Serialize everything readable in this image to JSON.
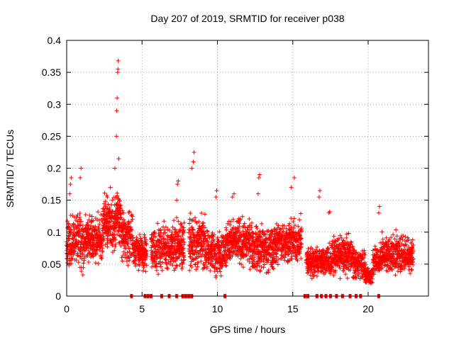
{
  "chart_data": {
    "type": "scatter",
    "title": "Day 207 of 2019, SRMTID for receiver p038",
    "xlabel": "GPS time / hours",
    "ylabel": "SRMTID / TECUs",
    "xlim": [
      0,
      24
    ],
    "ylim": [
      0,
      0.4
    ],
    "x_ticks": [
      0,
      5,
      10,
      15,
      20
    ],
    "x_tick_labels": [
      "0",
      "5",
      "10",
      "15",
      "20"
    ],
    "y_ticks": [
      0,
      0.05,
      0.1,
      0.15,
      0.2,
      0.25,
      0.3,
      0.35,
      0.4
    ],
    "y_tick_labels": [
      "0",
      "0.05",
      "0.1",
      "0.15",
      "0.2",
      "0.25",
      "0.3",
      "0.35",
      "0.4"
    ],
    "grid": true,
    "marker": "+",
    "series_color": "#ff0000",
    "segments": [
      {
        "start": 0.0,
        "end": 1.2,
        "mean": 0.085,
        "spread": 0.035,
        "step": 0.012
      },
      {
        "start": 1.2,
        "end": 2.4,
        "mean": 0.09,
        "spread": 0.03,
        "step": 0.012
      },
      {
        "start": 2.4,
        "end": 3.2,
        "mean": 0.115,
        "spread": 0.035,
        "step": 0.01
      },
      {
        "start": 3.2,
        "end": 3.6,
        "mean": 0.12,
        "spread": 0.04,
        "step": 0.01
      },
      {
        "start": 3.6,
        "end": 4.4,
        "mean": 0.095,
        "spread": 0.035,
        "step": 0.012
      },
      {
        "start": 4.4,
        "end": 5.3,
        "mean": 0.07,
        "spread": 0.022,
        "step": 0.012
      },
      {
        "start": 5.6,
        "end": 7.0,
        "mean": 0.075,
        "spread": 0.03,
        "step": 0.012
      },
      {
        "start": 7.0,
        "end": 7.8,
        "mean": 0.08,
        "spread": 0.035,
        "step": 0.012
      },
      {
        "start": 8.1,
        "end": 9.2,
        "mean": 0.085,
        "spread": 0.035,
        "step": 0.012
      },
      {
        "start": 9.2,
        "end": 10.6,
        "mean": 0.07,
        "spread": 0.03,
        "step": 0.012
      },
      {
        "start": 10.6,
        "end": 12.3,
        "mean": 0.085,
        "spread": 0.03,
        "step": 0.012
      },
      {
        "start": 12.3,
        "end": 13.8,
        "mean": 0.075,
        "spread": 0.03,
        "step": 0.012
      },
      {
        "start": 13.8,
        "end": 15.6,
        "mean": 0.085,
        "spread": 0.03,
        "step": 0.012
      },
      {
        "start": 15.9,
        "end": 17.6,
        "mean": 0.055,
        "spread": 0.02,
        "step": 0.012
      },
      {
        "start": 17.6,
        "end": 19.0,
        "mean": 0.065,
        "spread": 0.025,
        "step": 0.012
      },
      {
        "start": 19.0,
        "end": 19.8,
        "mean": 0.05,
        "spread": 0.02,
        "step": 0.012
      },
      {
        "start": 19.8,
        "end": 20.3,
        "mean": 0.03,
        "spread": 0.015,
        "step": 0.012
      },
      {
        "start": 20.3,
        "end": 20.8,
        "mean": 0.055,
        "spread": 0.02,
        "step": 0.012
      },
      {
        "start": 20.8,
        "end": 23.0,
        "mean": 0.065,
        "spread": 0.025,
        "step": 0.012
      }
    ],
    "spikes": [
      {
        "x": 0.2,
        "y": 0.16
      },
      {
        "x": 0.25,
        "y": 0.175
      },
      {
        "x": 0.3,
        "y": 0.185
      },
      {
        "x": 0.9,
        "y": 0.185
      },
      {
        "x": 0.95,
        "y": 0.2
      },
      {
        "x": 2.7,
        "y": 0.155
      },
      {
        "x": 2.9,
        "y": 0.17
      },
      {
        "x": 3.2,
        "y": 0.2
      },
      {
        "x": 3.3,
        "y": 0.25
      },
      {
        "x": 3.32,
        "y": 0.29
      },
      {
        "x": 3.35,
        "y": 0.31
      },
      {
        "x": 3.38,
        "y": 0.35
      },
      {
        "x": 3.4,
        "y": 0.355
      },
      {
        "x": 3.42,
        "y": 0.368
      },
      {
        "x": 3.45,
        "y": 0.215
      },
      {
        "x": 7.3,
        "y": 0.15
      },
      {
        "x": 7.35,
        "y": 0.175
      },
      {
        "x": 7.4,
        "y": 0.18
      },
      {
        "x": 8.3,
        "y": 0.2
      },
      {
        "x": 8.4,
        "y": 0.21
      },
      {
        "x": 8.45,
        "y": 0.225
      },
      {
        "x": 9.9,
        "y": 0.155
      },
      {
        "x": 9.95,
        "y": 0.165
      },
      {
        "x": 11.0,
        "y": 0.155
      },
      {
        "x": 11.1,
        "y": 0.16
      },
      {
        "x": 12.7,
        "y": 0.16
      },
      {
        "x": 12.75,
        "y": 0.185
      },
      {
        "x": 12.8,
        "y": 0.19
      },
      {
        "x": 14.9,
        "y": 0.17
      },
      {
        "x": 15.1,
        "y": 0.185
      },
      {
        "x": 16.75,
        "y": 0.155
      },
      {
        "x": 16.8,
        "y": 0.165
      },
      {
        "x": 17.4,
        "y": 0.13
      },
      {
        "x": 17.45,
        "y": 0.132
      },
      {
        "x": 20.7,
        "y": 0.13
      },
      {
        "x": 20.75,
        "y": 0.14
      }
    ],
    "zero_markers": [
      4.3,
      5.2,
      5.4,
      5.6,
      6.3,
      6.8,
      7.3,
      7.7,
      7.9,
      8.1,
      8.3,
      10.5,
      15.8,
      16.0,
      16.6,
      16.9,
      17.2,
      17.5,
      17.9,
      18.3,
      18.8,
      19.2,
      19.5,
      20.7
    ]
  }
}
